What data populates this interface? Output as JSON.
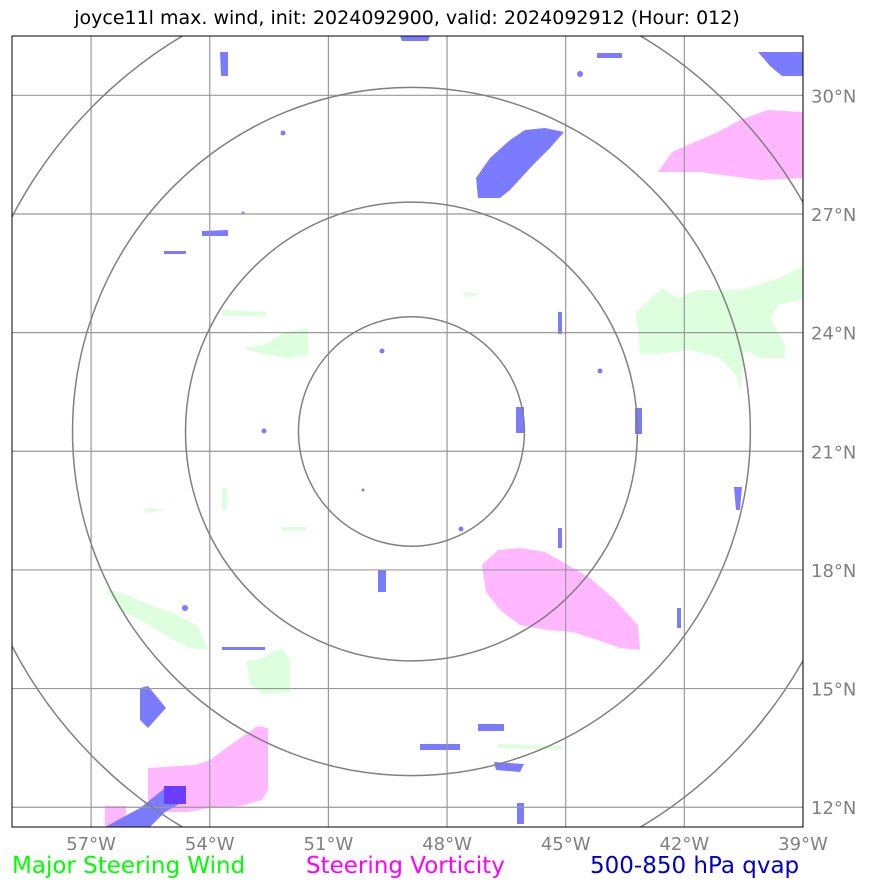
{
  "title": "joyce11l max. wind, init: 2024092900, valid: 2024092912 (Hour: 012)",
  "colors": {
    "steering_wind": "#00ff00",
    "steering_vorticity": "#ff00ff",
    "qvap": "#0000cc",
    "qvap_fill": "#7b7bff",
    "vort_fill": "#ffb8ff",
    "wind_fill": "#ddffdd",
    "grid": "#999999",
    "range_rings": "#808080",
    "tick_labels": "#808080"
  },
  "map": {
    "lon_range": [
      -59.0,
      -39.0
    ],
    "lat_range": [
      11.5,
      31.5
    ],
    "lon_ticks": [
      {
        "value": -57,
        "label": "57°W"
      },
      {
        "value": -54,
        "label": "54°W"
      },
      {
        "value": -51,
        "label": "51°W"
      },
      {
        "value": -48,
        "label": "48°W"
      },
      {
        "value": -45,
        "label": "45°W"
      },
      {
        "value": -42,
        "label": "42°W"
      },
      {
        "value": -39,
        "label": "39°W"
      }
    ],
    "lat_ticks": [
      {
        "value": 30,
        "label": "30°N"
      },
      {
        "value": 27,
        "label": "27°N"
      },
      {
        "value": 24,
        "label": "24°N"
      },
      {
        "value": 21,
        "label": "21°N"
      },
      {
        "value": 18,
        "label": "18°N"
      },
      {
        "value": 15,
        "label": "15°N"
      },
      {
        "value": 12,
        "label": "12°N"
      }
    ],
    "storm_center": {
      "lon": -48.9,
      "lat": 21.5
    },
    "range_rings_deg": [
      2.9,
      5.8,
      8.7,
      11.6
    ]
  },
  "legend": {
    "wind": "Major Steering Wind",
    "vorticity": "Steering Vorticity",
    "qvap": "500-850 hPa qvap"
  }
}
